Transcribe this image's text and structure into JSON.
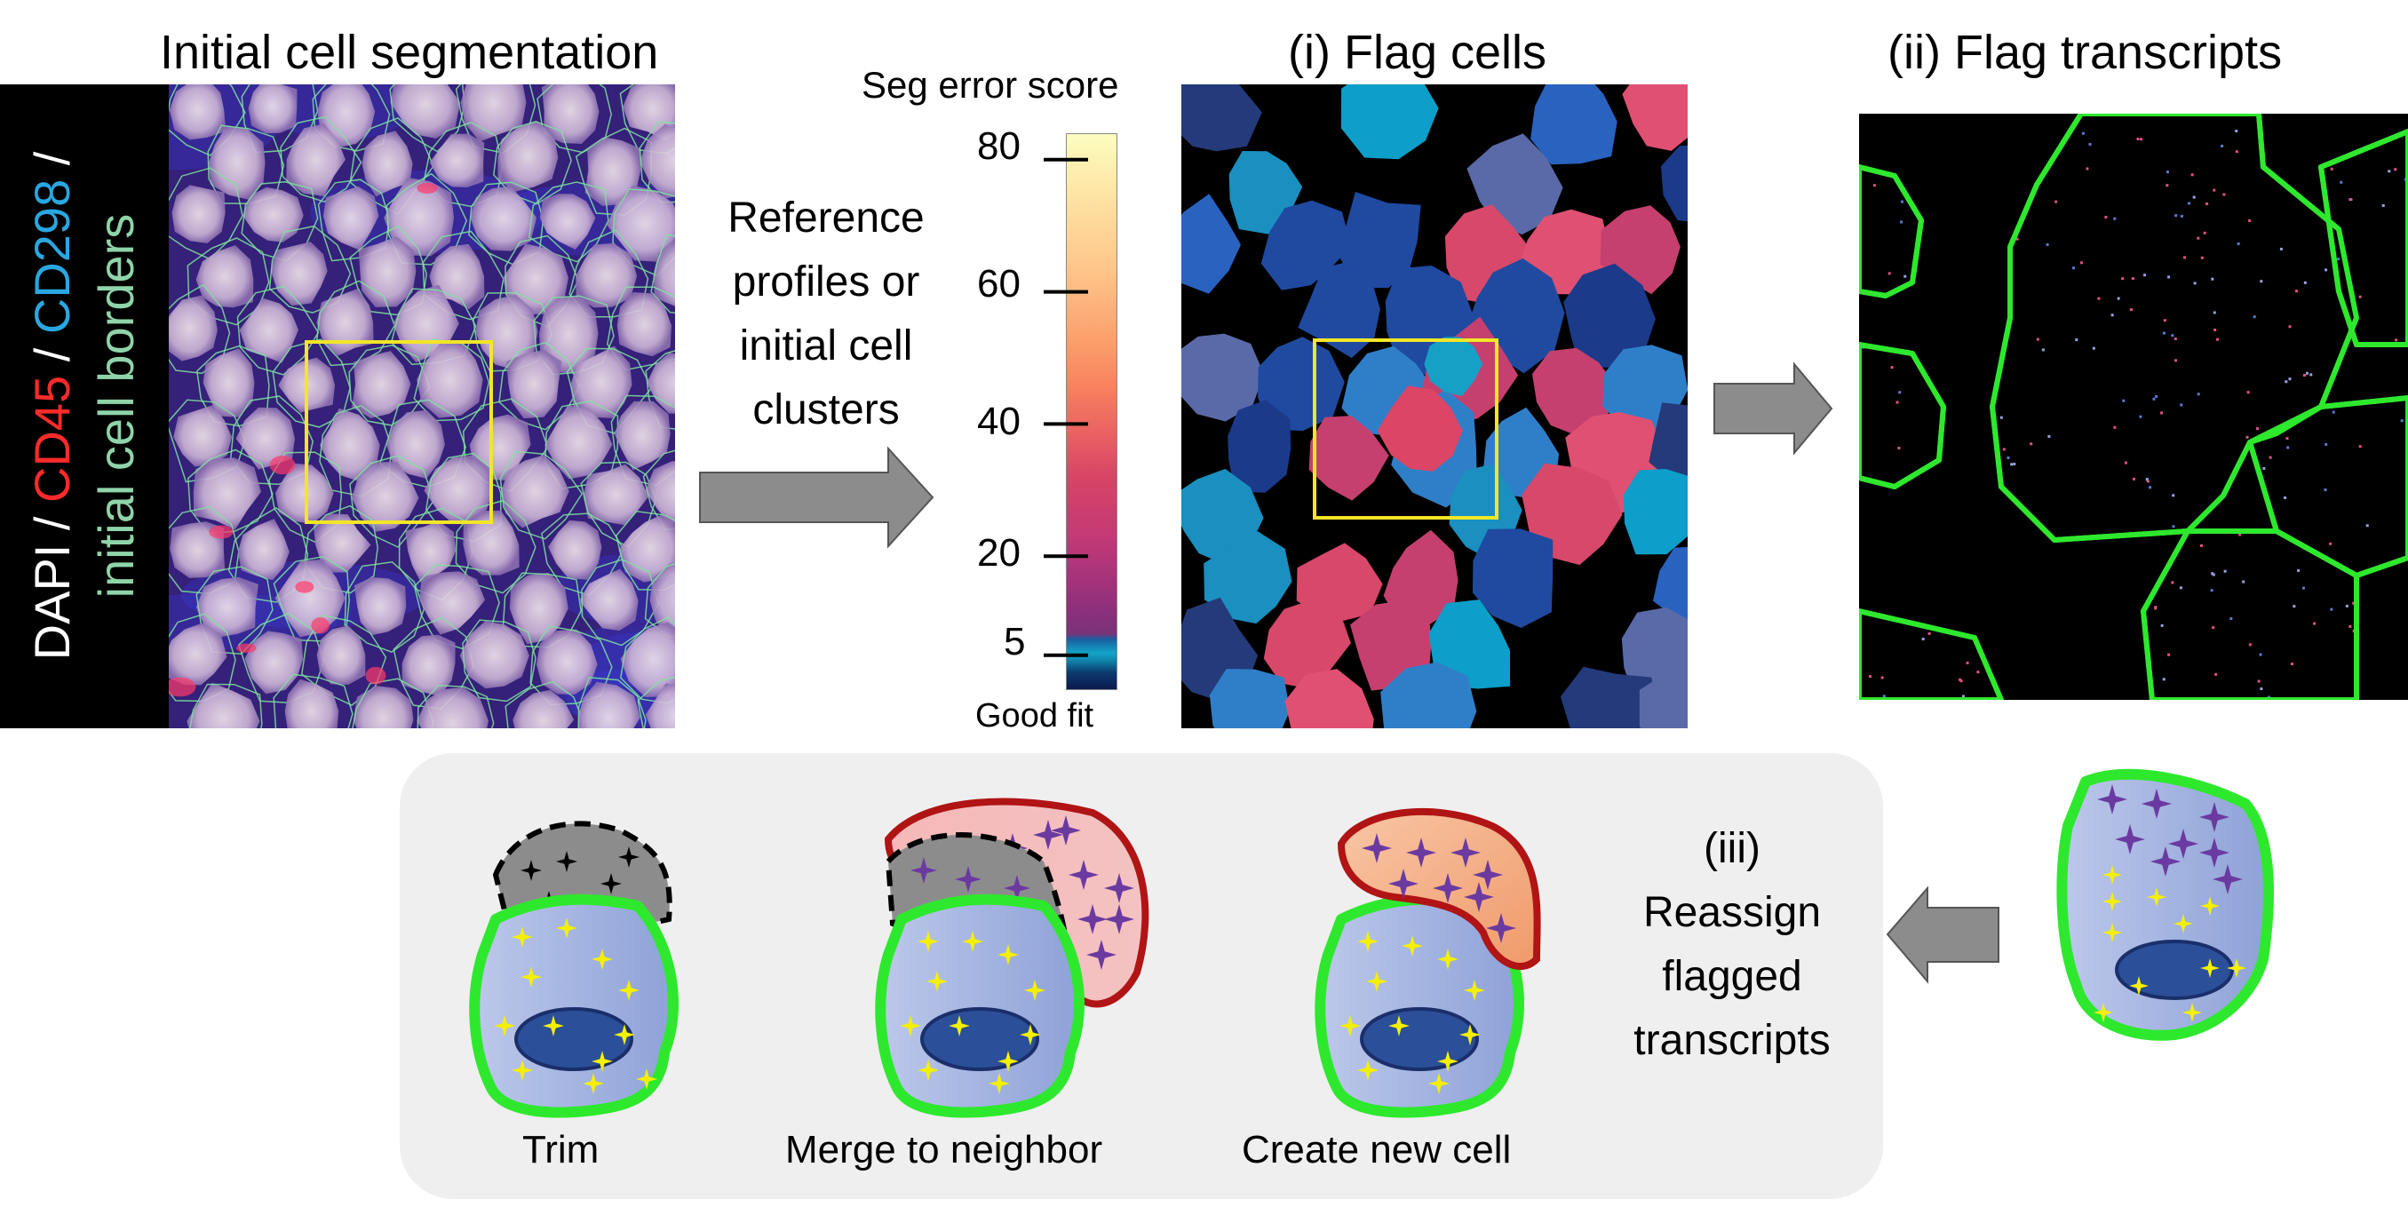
{
  "titles": {
    "initial_seg": "Initial cell segmentation",
    "flag_cells": "(i) Flag cells",
    "flag_transcripts": "(ii) Flag transcripts",
    "colorbar_title": "Seg error score"
  },
  "stain_label": {
    "dapi": "DAPI",
    "sep1": " / ",
    "cd45": "CD45",
    "sep2": " / ",
    "cd298": "CD298",
    "sep3": " /",
    "borders": "initial cell borders",
    "colors": {
      "dapi": "#ffffff",
      "cd45": "#ff2a2a",
      "cd298": "#29a7e0",
      "borders": "#8fd4a9"
    }
  },
  "arrow_text": {
    "line1": "Reference",
    "line2": "profiles or",
    "line3": "initial cell",
    "line4": "clusters"
  },
  "colorbar": {
    "ticks": [
      "80",
      "60",
      "40",
      "20",
      "5"
    ],
    "tick_values": [
      80,
      60,
      40,
      20,
      5
    ],
    "bottom_label": "Good fit",
    "range": [
      0,
      84
    ],
    "palette": [
      "#fcfdbf",
      "#fec488",
      "#f9835e",
      "#e04e6a",
      "#b2327a",
      "#7a3379",
      "#1a5fa0",
      "#11a4c7",
      "#0c1a4f"
    ]
  },
  "reassign": {
    "line1": "(iii)",
    "line2": "Reassign",
    "line3": "flagged",
    "line4": "transcripts"
  },
  "captions": {
    "trim": "Trim",
    "merge": "Merge to neighbor",
    "create": "Create new cell"
  },
  "colors": {
    "cell_border": "#22ee22",
    "highlight_box": "#f2e627",
    "flag_red": "#b01414",
    "nucleus": "#2b4f98",
    "transcript_yellow": "#f5f000",
    "transcript_purple": "#6b3aa0"
  }
}
